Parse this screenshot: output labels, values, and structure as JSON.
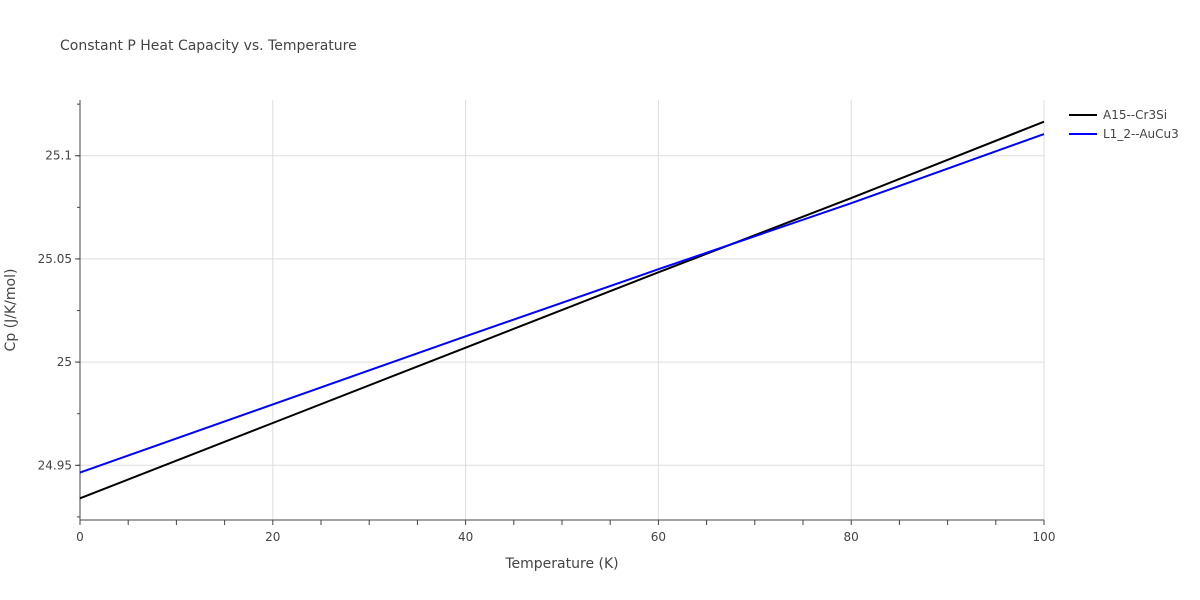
{
  "chart_data": {
    "type": "line",
    "title": "Constant P Heat Capacity vs. Temperature",
    "xlabel": "Temperature (K)",
    "ylabel": "Cp (J/K/mol)",
    "xlim": [
      0,
      100
    ],
    "ylim": [
      24.9235,
      25.127
    ],
    "x_ticks": [
      0,
      20,
      40,
      60,
      80,
      100
    ],
    "y_ticks": [
      24.95,
      25,
      25.05,
      25.1
    ],
    "x_tick_labels": [
      "0",
      "20",
      "40",
      "60",
      "80",
      "100"
    ],
    "y_tick_labels": [
      "24.95",
      "25",
      "25.05",
      "25.1"
    ],
    "grid": true,
    "legend_position": "top-right",
    "series": [
      {
        "name": "A15--Cr3Si",
        "color": "#000000",
        "x": [
          0,
          20,
          40,
          60,
          80,
          100
        ],
        "y": [
          24.934,
          24.9705,
          25.007,
          25.0435,
          25.0795,
          25.1165
        ]
      },
      {
        "name": "L1_2--AuCu3",
        "color": "#0000ff",
        "x": [
          0,
          20,
          40,
          60,
          80,
          100
        ],
        "y": [
          24.9465,
          24.9795,
          25.0125,
          25.045,
          25.077,
          25.1105
        ]
      }
    ]
  }
}
